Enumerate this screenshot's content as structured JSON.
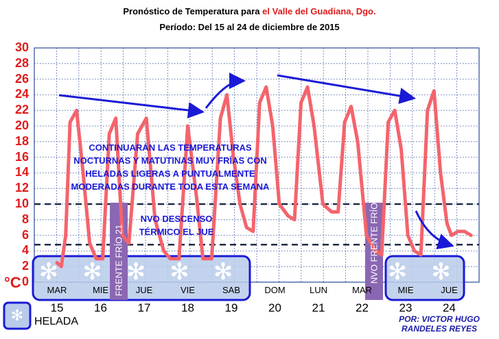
{
  "chart_data": {
    "type": "line",
    "title_prefix": "Pronóstico  de Temperatura  para",
    "title_place": "el  Valle del Guadiana, Dgo.",
    "subtitle": "Período:   Del  15 al  24 de diciembre de 2015",
    "ylabel": "°C",
    "ylim": [
      0,
      30
    ],
    "y_ticks": [
      "0",
      "2",
      "4",
      "6",
      "8",
      "10",
      "12",
      "14",
      "16",
      "18",
      "20",
      "22",
      "24",
      "26",
      "28",
      "30"
    ],
    "x_day_labels": [
      "MAR",
      "MIE",
      "JUE",
      "VIE",
      "SAB",
      "DOM",
      "LUN",
      "MAR",
      "MIE",
      "JUE"
    ],
    "x_date_labels": [
      "15",
      "16",
      "17",
      "18",
      "19",
      "20",
      "21",
      "22",
      "23",
      "24"
    ],
    "grid": "dotted",
    "series": [
      {
        "color": "#f4646c",
        "x": [
          15.0,
          15.1,
          15.2,
          15.3,
          15.45,
          15.6,
          15.75,
          15.9,
          16.05,
          16.2,
          16.35,
          16.5,
          16.65,
          16.85,
          17.05,
          17.25,
          17.45,
          17.6,
          17.8,
          18.0,
          18.2,
          18.35,
          18.55,
          18.75,
          18.9,
          19.05,
          19.2,
          19.35,
          19.5,
          19.65,
          19.8,
          19.95,
          20.1,
          20.3,
          20.45,
          20.6,
          20.75,
          20.9,
          21.1,
          21.3,
          21.45,
          21.6,
          21.75,
          21.9,
          22.1,
          22.3,
          22.45,
          22.6,
          22.75,
          22.9,
          23.05,
          23.2,
          23.35,
          23.5,
          23.65,
          23.8,
          23.95,
          24.05,
          24.2,
          24.35,
          24.5
        ],
        "values": [
          2.5,
          2,
          6,
          20.5,
          22,
          14,
          5,
          3,
          3,
          19,
          21,
          6,
          5,
          19,
          21,
          8,
          4,
          3,
          3,
          20,
          11,
          3,
          3,
          21,
          24,
          16,
          10,
          7,
          6.5,
          23,
          25,
          20,
          10,
          8.5,
          8,
          23,
          25,
          20,
          10,
          9,
          9,
          20.5,
          22.5,
          18,
          6,
          4,
          3.5,
          20.5,
          22,
          17,
          6,
          4,
          3.5,
          22,
          24.5,
          14,
          7.5,
          6,
          6.5,
          6.5,
          6
        ]
      }
    ],
    "reference_lines": [
      {
        "value": 10,
        "color": "#1f2a44",
        "style": "dashed"
      },
      {
        "value": 4.8,
        "color": "#1f2a44",
        "style": "dashed"
      }
    ],
    "annotations": {
      "main_text": [
        "CONTINUARÁN LAS TEMPERATURAS",
        "NOCTURNAS Y MATUTINAS MUY FRÍAS CON",
        "HELADAS LIGERAS A PUNTUALMENTE",
        "MODERADAS DURANTE TODA ESTA SEMANA"
      ],
      "descent_text": [
        "NVO DESCENSO",
        "TÉRMICO EL JUE"
      ],
      "front1": "FRENTE FRÍO 21",
      "front2": "NVO FRENTE FRÍO",
      "author": [
        "POR:  VICTOR HUGO",
        "RANDELES REYES"
      ],
      "legend_label": "HELADA",
      "frost_symbol": "✻"
    },
    "colors": {
      "temperature_line": "#f4646c",
      "annotation": "#1a1ad6",
      "frost_box_fill": "#b9cbea",
      "front_fill": "#8b67b3",
      "axis_ticks": "#e01b1b"
    }
  }
}
